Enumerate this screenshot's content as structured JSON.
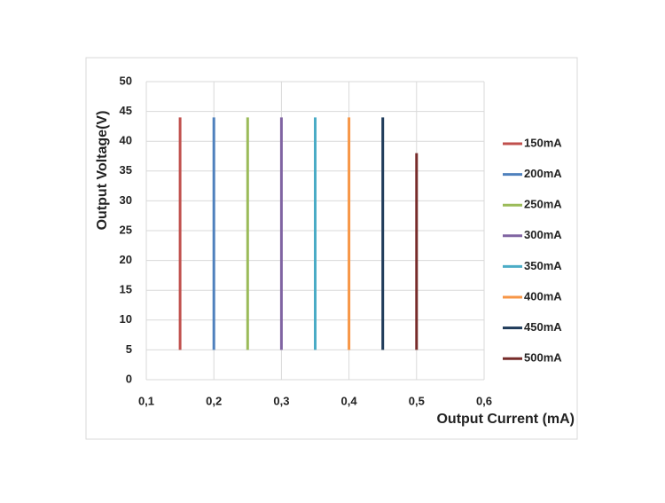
{
  "chart_data": {
    "type": "line",
    "x_label": "Output Current (mA)",
    "y_label": "Output Voltage(V)",
    "xlim": [
      0.1,
      0.6
    ],
    "xticks": [
      {
        "value": 0.1,
        "label": "0,1"
      },
      {
        "value": 0.2,
        "label": "0,2"
      },
      {
        "value": 0.3,
        "label": "0,3"
      },
      {
        "value": 0.4,
        "label": "0,4"
      },
      {
        "value": 0.5,
        "label": "0,5"
      },
      {
        "value": 0.6,
        "label": "0,6"
      }
    ],
    "ylim": [
      0,
      50
    ],
    "yticks": [
      0,
      5,
      10,
      15,
      20,
      25,
      30,
      35,
      40,
      45,
      50
    ],
    "grid": true,
    "legend": "right",
    "series": [
      {
        "name": "150mA",
        "color": "#c0504d",
        "x": [
          0.15,
          0.15
        ],
        "values": [
          5,
          44
        ]
      },
      {
        "name": "200mA",
        "color": "#4f81bd",
        "x": [
          0.2,
          0.2
        ],
        "values": [
          5,
          44
        ]
      },
      {
        "name": "250mA",
        "color": "#9bbb59",
        "x": [
          0.25,
          0.25
        ],
        "values": [
          5,
          44
        ]
      },
      {
        "name": "300mA",
        "color": "#8064a2",
        "x": [
          0.3,
          0.3
        ],
        "values": [
          5,
          44
        ]
      },
      {
        "name": "350mA",
        "color": "#4bacc6",
        "x": [
          0.35,
          0.35
        ],
        "values": [
          5,
          44
        ]
      },
      {
        "name": "400mA",
        "color": "#f79646",
        "x": [
          0.4,
          0.4
        ],
        "values": [
          5,
          44
        ]
      },
      {
        "name": "450mA",
        "color": "#1f3b5a",
        "x": [
          0.45,
          0.45
        ],
        "values": [
          5,
          44
        ]
      },
      {
        "name": "500mA",
        "color": "#772c2a",
        "x": [
          0.5,
          0.5
        ],
        "values": [
          5,
          38
        ]
      }
    ]
  }
}
